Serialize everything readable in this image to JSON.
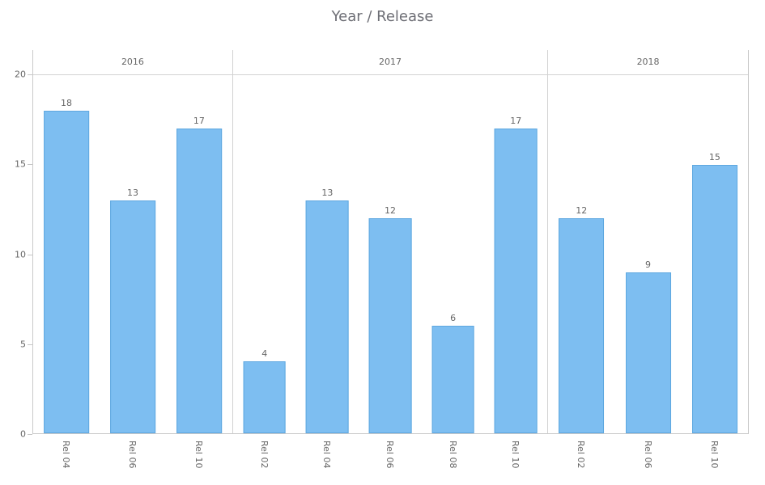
{
  "chart_data": {
    "type": "bar",
    "title": "Year / Release",
    "xlabel": "",
    "ylabel": "",
    "ylim": [
      0,
      20
    ],
    "yticks": [
      0,
      5,
      10,
      15,
      20
    ],
    "grid": "horizontal line at y=20 only, vertical dividers between year groups",
    "legend": "none",
    "bar_color": "#7dbef1",
    "bar_border_color": "#5ea7e0",
    "label_color": "#666666",
    "title_color": "#6d6e75",
    "axis_line_color": "#c9c9c9",
    "groups": [
      {
        "label": "2016",
        "categories": [
          "Rel 04",
          "Rel 06",
          "Rel 10"
        ],
        "values": [
          18,
          13,
          17
        ]
      },
      {
        "label": "2017",
        "categories": [
          "Rel 02",
          "Rel 04",
          "Rel 06",
          "Rel 08",
          "Rel 10"
        ],
        "values": [
          4,
          13,
          12,
          6,
          17
        ]
      },
      {
        "label": "2018",
        "categories": [
          "Rel 02",
          "Rel 06",
          "Rel 10"
        ],
        "values": [
          12,
          9,
          15
        ]
      }
    ]
  }
}
